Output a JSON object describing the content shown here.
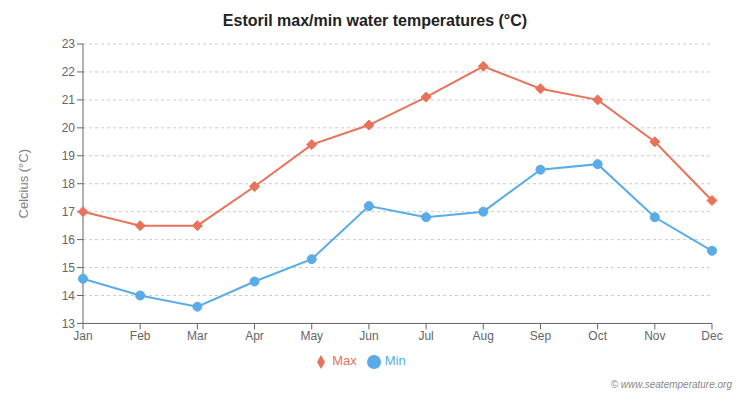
{
  "chart_data": {
    "type": "line",
    "title": "Estoril max/min water temperatures (°C)",
    "y_label": "Celcius (°C)",
    "categories": [
      "Jan",
      "Feb",
      "Mar",
      "Apr",
      "May",
      "Jun",
      "Jul",
      "Aug",
      "Sep",
      "Oct",
      "Nov",
      "Dec"
    ],
    "series": [
      {
        "name": "Max",
        "color": "#e8735a",
        "marker": "diamond",
        "values": [
          17.0,
          16.5,
          16.5,
          17.9,
          19.4,
          20.1,
          21.1,
          22.2,
          21.4,
          21.0,
          19.5,
          17.4
        ]
      },
      {
        "name": "Min",
        "color": "#5aace8",
        "marker": "circle",
        "values": [
          14.6,
          14.0,
          13.6,
          14.5,
          15.3,
          17.2,
          16.8,
          17.0,
          18.5,
          18.7,
          16.8,
          15.6
        ]
      }
    ],
    "ylim": [
      13,
      23
    ],
    "yticks": [
      13,
      14,
      15,
      16,
      17,
      18,
      19,
      20,
      21,
      22,
      23
    ],
    "grid": true,
    "legend": "bottom",
    "annotations": [
      "© www.seatemperature.org"
    ]
  }
}
